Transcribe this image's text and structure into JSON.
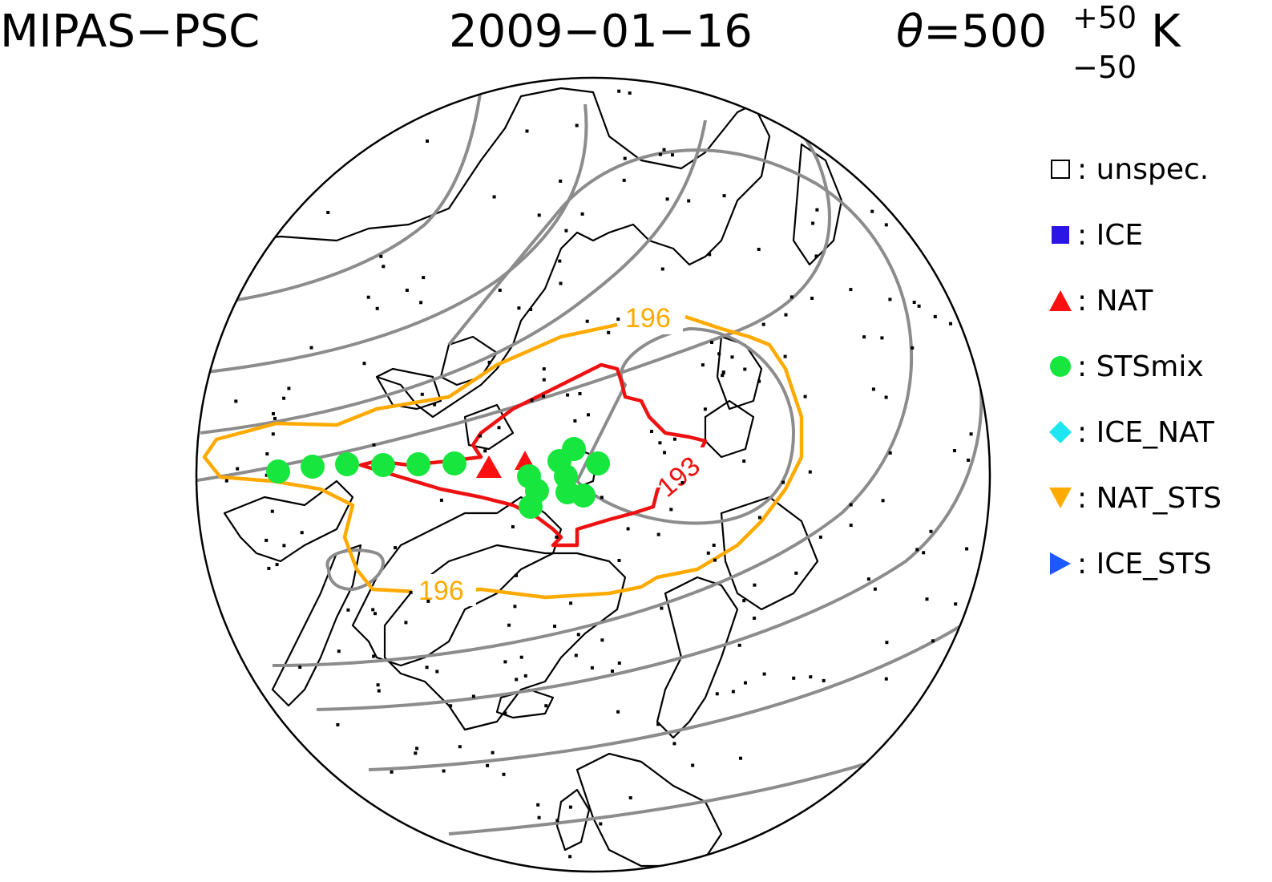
{
  "title": {
    "instrument": "MIPAS−PSC",
    "date": "2009−01−16",
    "theta_symbol": "θ",
    "theta_value": "=500",
    "theta_sup": "+50",
    "theta_sub": "−50",
    "theta_unit": "K"
  },
  "legend": [
    {
      "label": ": unspec.",
      "marker": "open-square",
      "color": "#000000"
    },
    {
      "label": ": ICE",
      "marker": "square",
      "color": "#2a14e6"
    },
    {
      "label": ": NAT",
      "marker": "triangle-up",
      "color": "#ff1010"
    },
    {
      "label": ": STSmix",
      "marker": "circle",
      "color": "#16e63e"
    },
    {
      "label": ": ICE_NAT",
      "marker": "diamond",
      "color": "#1ee6f0"
    },
    {
      "label": ": NAT_STS",
      "marker": "triangle-down",
      "color": "#ffaa00"
    },
    {
      "label": ": ICE_STS",
      "marker": "triangle-right",
      "color": "#1a5aff"
    }
  ],
  "map": {
    "projection": "north polar stereographic",
    "contours": [
      {
        "label": "196",
        "color": "#ffaa00",
        "label_count": 2
      },
      {
        "label": "193",
        "color": "#ee1111",
        "label_count": 1
      }
    ],
    "background_contour_color": "#8c8c8c",
    "coastline_color": "#000000"
  },
  "colors": {
    "orange_contour": "#ffaa00",
    "red_contour": "#ee1111",
    "gray_contour": "#8c8c8c",
    "sts_marker": "#16e63e",
    "nat_marker": "#ff1010"
  }
}
